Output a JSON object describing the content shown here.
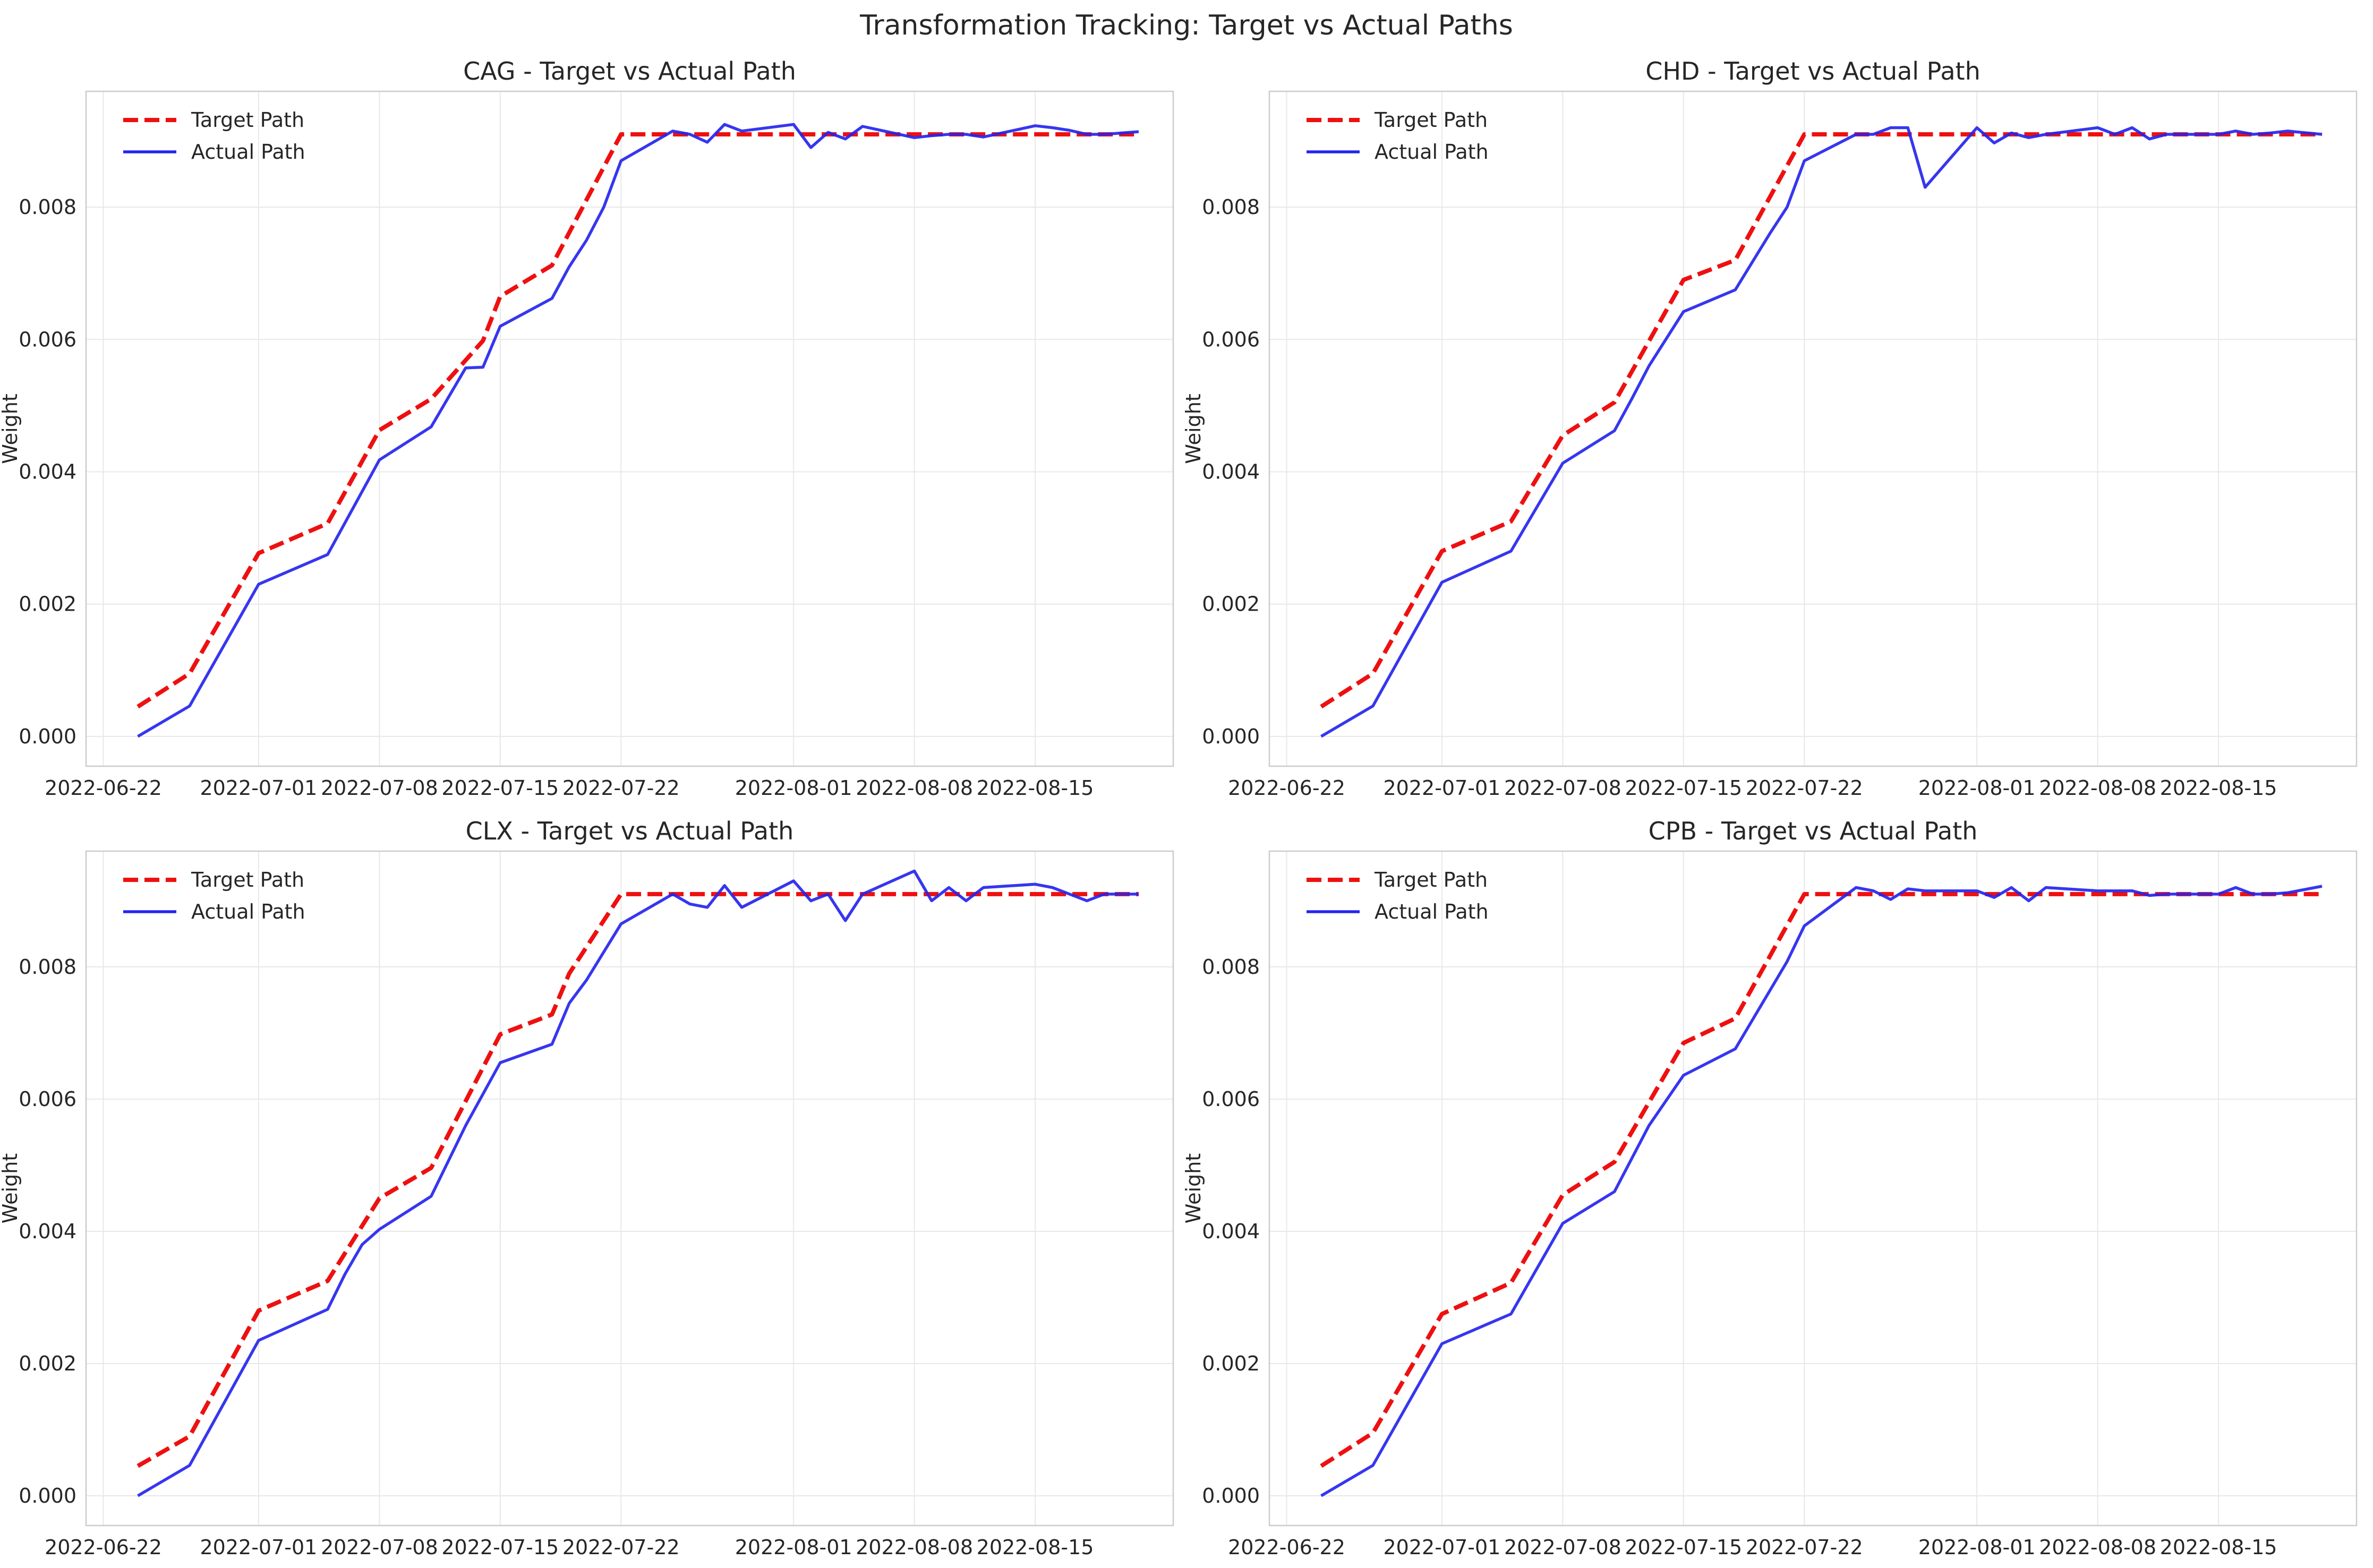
{
  "figure": {
    "title": "Transformation Tracking: Target vs Actual Paths"
  },
  "style": {
    "target_color": "#ee1010",
    "actual_color": "#2525ee",
    "grid_color": "#e8e8e8",
    "spine_color": "#cccccc",
    "text_color": "#262626"
  },
  "chart_data": [
    {
      "type": "line",
      "title": "CAG - Target vs Actual Path",
      "xlabel": "",
      "ylabel": "Weight",
      "xlim": [
        "2022-06-21",
        "2022-08-23"
      ],
      "ylim": [
        -0.00045,
        0.00975
      ],
      "xticks": [
        "2022-06-22",
        "2022-07-01",
        "2022-07-08",
        "2022-07-15",
        "2022-07-22",
        "2022-08-01",
        "2022-08-08",
        "2022-08-15"
      ],
      "yticks": [
        "0.000",
        "0.002",
        "0.004",
        "0.006",
        "0.008"
      ],
      "grid": true,
      "legend": "top-left",
      "series": [
        {
          "name": "Target Path",
          "style": "dashed",
          "x": [
            "2022-06-24",
            "2022-06-27",
            "2022-07-01",
            "2022-07-05",
            "2022-07-08",
            "2022-07-11",
            "2022-07-14",
            "2022-07-15",
            "2022-07-18",
            "2022-07-22",
            "2022-08-21"
          ],
          "y": [
            0.00045,
            0.00095,
            0.00277,
            0.00322,
            0.00463,
            0.0051,
            0.00598,
            0.00665,
            0.00712,
            0.0091,
            0.0091
          ]
        },
        {
          "name": "Actual Path",
          "style": "solid",
          "x": [
            "2022-06-24",
            "2022-06-27",
            "2022-07-01",
            "2022-07-05",
            "2022-07-08",
            "2022-07-11",
            "2022-07-13",
            "2022-07-14",
            "2022-07-15",
            "2022-07-18",
            "2022-07-19",
            "2022-07-20",
            "2022-07-21",
            "2022-07-22",
            "2022-07-25",
            "2022-07-26",
            "2022-07-27",
            "2022-07-28",
            "2022-07-29",
            "2022-08-01",
            "2022-08-02",
            "2022-08-03",
            "2022-08-04",
            "2022-08-05",
            "2022-08-08",
            "2022-08-09",
            "2022-08-10",
            "2022-08-11",
            "2022-08-12",
            "2022-08-15",
            "2022-08-16",
            "2022-08-17",
            "2022-08-18",
            "2022-08-19",
            "2022-08-21"
          ],
          "y": [
            0.0,
            0.00046,
            0.0023,
            0.00275,
            0.00418,
            0.00468,
            0.00557,
            0.00558,
            0.0062,
            0.00662,
            0.0071,
            0.0075,
            0.008,
            0.0087,
            0.00915,
            0.0091,
            0.00898,
            0.00925,
            0.00915,
            0.00925,
            0.0089,
            0.00913,
            0.00903,
            0.00922,
            0.00905,
            0.00908,
            0.0091,
            0.0091,
            0.00906,
            0.00923,
            0.0092,
            0.00916,
            0.0091,
            0.0091,
            0.00914
          ]
        }
      ]
    },
    {
      "type": "line",
      "title": "CHD - Target vs Actual Path",
      "xlabel": "",
      "ylabel": "Weight",
      "xlim": [
        "2022-06-21",
        "2022-08-23"
      ],
      "ylim": [
        -0.00045,
        0.00975
      ],
      "xticks": [
        "2022-06-22",
        "2022-07-01",
        "2022-07-08",
        "2022-07-15",
        "2022-07-22",
        "2022-08-01",
        "2022-08-08",
        "2022-08-15"
      ],
      "yticks": [
        "0.000",
        "0.002",
        "0.004",
        "0.006",
        "0.008"
      ],
      "grid": true,
      "legend": "top-left",
      "series": [
        {
          "name": "Target Path",
          "style": "dashed",
          "x": [
            "2022-06-24",
            "2022-06-27",
            "2022-07-01",
            "2022-07-05",
            "2022-07-08",
            "2022-07-11",
            "2022-07-15",
            "2022-07-18",
            "2022-07-22",
            "2022-08-21"
          ],
          "y": [
            0.00045,
            0.00095,
            0.0028,
            0.00325,
            0.00455,
            0.00505,
            0.0069,
            0.0072,
            0.0091,
            0.0091
          ]
        },
        {
          "name": "Actual Path",
          "style": "solid",
          "x": [
            "2022-06-24",
            "2022-06-27",
            "2022-07-01",
            "2022-07-05",
            "2022-07-08",
            "2022-07-11",
            "2022-07-12",
            "2022-07-13",
            "2022-07-15",
            "2022-07-18",
            "2022-07-20",
            "2022-07-21",
            "2022-07-22",
            "2022-07-25",
            "2022-07-26",
            "2022-07-27",
            "2022-07-28",
            "2022-07-29",
            "2022-08-01",
            "2022-08-02",
            "2022-08-03",
            "2022-08-04",
            "2022-08-05",
            "2022-08-08",
            "2022-08-09",
            "2022-08-10",
            "2022-08-11",
            "2022-08-12",
            "2022-08-15",
            "2022-08-16",
            "2022-08-17",
            "2022-08-18",
            "2022-08-19",
            "2022-08-21"
          ],
          "y": [
            0.0,
            0.00046,
            0.00233,
            0.0028,
            0.00413,
            0.00462,
            0.0051,
            0.0056,
            0.00642,
            0.00675,
            0.0076,
            0.008,
            0.0087,
            0.0091,
            0.0091,
            0.0092,
            0.0092,
            0.0083,
            0.0092,
            0.00897,
            0.00912,
            0.00905,
            0.0091,
            0.0092,
            0.0091,
            0.0092,
            0.00903,
            0.0091,
            0.0091,
            0.00915,
            0.0091,
            0.00912,
            0.00915,
            0.0091
          ]
        }
      ]
    },
    {
      "type": "line",
      "title": "CLX - Target vs Actual Path",
      "xlabel": "",
      "ylabel": "Weight",
      "xlim": [
        "2022-06-21",
        "2022-08-23"
      ],
      "ylim": [
        -0.00045,
        0.00975
      ],
      "xticks": [
        "2022-06-22",
        "2022-07-01",
        "2022-07-08",
        "2022-07-15",
        "2022-07-22",
        "2022-08-01",
        "2022-08-08",
        "2022-08-15"
      ],
      "yticks": [
        "0.000",
        "0.002",
        "0.004",
        "0.006",
        "0.008"
      ],
      "grid": true,
      "legend": "top-left",
      "series": [
        {
          "name": "Target Path",
          "style": "dashed",
          "x": [
            "2022-06-24",
            "2022-06-27",
            "2022-07-01",
            "2022-07-05",
            "2022-07-08",
            "2022-07-11",
            "2022-07-15",
            "2022-07-18",
            "2022-07-19",
            "2022-07-22",
            "2022-08-21"
          ],
          "y": [
            0.00045,
            0.0009,
            0.0028,
            0.00325,
            0.0045,
            0.00496,
            0.00698,
            0.00728,
            0.0079,
            0.0091,
            0.0091
          ]
        },
        {
          "name": "Actual Path",
          "style": "solid",
          "x": [
            "2022-06-24",
            "2022-06-27",
            "2022-07-01",
            "2022-07-05",
            "2022-07-06",
            "2022-07-07",
            "2022-07-08",
            "2022-07-11",
            "2022-07-13",
            "2022-07-15",
            "2022-07-18",
            "2022-07-19",
            "2022-07-20",
            "2022-07-22",
            "2022-07-25",
            "2022-07-26",
            "2022-07-27",
            "2022-07-28",
            "2022-07-29",
            "2022-08-01",
            "2022-08-02",
            "2022-08-03",
            "2022-08-04",
            "2022-08-05",
            "2022-08-08",
            "2022-08-09",
            "2022-08-10",
            "2022-08-11",
            "2022-08-12",
            "2022-08-15",
            "2022-08-16",
            "2022-08-17",
            "2022-08-18",
            "2022-08-19",
            "2022-08-21"
          ],
          "y": [
            0.0,
            0.00046,
            0.00235,
            0.00282,
            0.00335,
            0.0038,
            0.00403,
            0.00453,
            0.0056,
            0.00655,
            0.00683,
            0.00745,
            0.0078,
            0.00865,
            0.0091,
            0.00895,
            0.0089,
            0.00923,
            0.0089,
            0.0093,
            0.009,
            0.0091,
            0.0087,
            0.0091,
            0.00945,
            0.009,
            0.0092,
            0.009,
            0.0092,
            0.00925,
            0.0092,
            0.0091,
            0.009,
            0.0091,
            0.0091
          ]
        }
      ]
    },
    {
      "type": "line",
      "title": "CPB - Target vs Actual Path",
      "xlabel": "",
      "ylabel": "Weight",
      "xlim": [
        "2022-06-21",
        "2022-08-23"
      ],
      "ylim": [
        -0.00045,
        0.00975
      ],
      "xticks": [
        "2022-06-22",
        "2022-07-01",
        "2022-07-08",
        "2022-07-15",
        "2022-07-22",
        "2022-08-01",
        "2022-08-08",
        "2022-08-15"
      ],
      "yticks": [
        "0.000",
        "0.002",
        "0.004",
        "0.006",
        "0.008"
      ],
      "grid": true,
      "legend": "top-left",
      "series": [
        {
          "name": "Target Path",
          "style": "dashed",
          "x": [
            "2022-06-24",
            "2022-06-27",
            "2022-07-01",
            "2022-07-05",
            "2022-07-08",
            "2022-07-11",
            "2022-07-15",
            "2022-07-18",
            "2022-07-22",
            "2022-08-21"
          ],
          "y": [
            0.00045,
            0.00095,
            0.00275,
            0.00322,
            0.00455,
            0.00505,
            0.00685,
            0.00722,
            0.0091,
            0.0091
          ]
        },
        {
          "name": "Actual Path",
          "style": "solid",
          "x": [
            "2022-06-24",
            "2022-06-27",
            "2022-07-01",
            "2022-07-05",
            "2022-07-08",
            "2022-07-11",
            "2022-07-13",
            "2022-07-15",
            "2022-07-18",
            "2022-07-19",
            "2022-07-21",
            "2022-07-22",
            "2022-07-25",
            "2022-07-26",
            "2022-07-27",
            "2022-07-28",
            "2022-07-29",
            "2022-08-01",
            "2022-08-02",
            "2022-08-03",
            "2022-08-04",
            "2022-08-05",
            "2022-08-08",
            "2022-08-09",
            "2022-08-10",
            "2022-08-11",
            "2022-08-12",
            "2022-08-15",
            "2022-08-16",
            "2022-08-17",
            "2022-08-18",
            "2022-08-19",
            "2022-08-21"
          ],
          "y": [
            0.0,
            0.00046,
            0.0023,
            0.00275,
            0.00412,
            0.0046,
            0.0056,
            0.00636,
            0.00676,
            0.0072,
            0.00808,
            0.00862,
            0.0092,
            0.00915,
            0.00902,
            0.00918,
            0.00915,
            0.00915,
            0.00905,
            0.0092,
            0.009,
            0.0092,
            0.00915,
            0.00915,
            0.00915,
            0.00908,
            0.0091,
            0.0091,
            0.0092,
            0.0091,
            0.0091,
            0.00912,
            0.00922
          ]
        }
      ]
    }
  ]
}
